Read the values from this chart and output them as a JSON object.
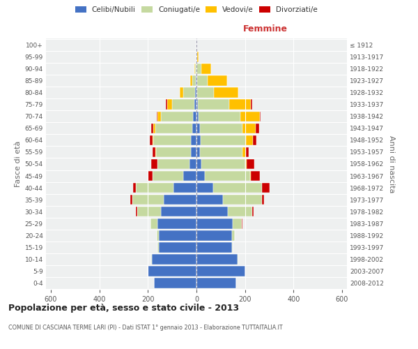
{
  "age_groups": [
    "0-4",
    "5-9",
    "10-14",
    "15-19",
    "20-24",
    "25-29",
    "30-34",
    "35-39",
    "40-44",
    "45-49",
    "50-54",
    "55-59",
    "60-64",
    "65-69",
    "70-74",
    "75-79",
    "80-84",
    "85-89",
    "90-94",
    "95-99",
    "100+"
  ],
  "birth_years": [
    "2008-2012",
    "2003-2007",
    "1998-2002",
    "1993-1997",
    "1988-1992",
    "1983-1987",
    "1978-1982",
    "1973-1977",
    "1968-1972",
    "1963-1967",
    "1958-1962",
    "1953-1957",
    "1948-1952",
    "1943-1947",
    "1938-1942",
    "1933-1937",
    "1928-1932",
    "1923-1927",
    "1918-1922",
    "1913-1917",
    "≤ 1912"
  ],
  "males": {
    "celibi": [
      175,
      200,
      185,
      155,
      155,
      160,
      145,
      135,
      95,
      55,
      30,
      22,
      22,
      18,
      15,
      10,
      5,
      2,
      0,
      0,
      0
    ],
    "coniugati": [
      0,
      0,
      2,
      5,
      10,
      30,
      100,
      130,
      155,
      125,
      130,
      145,
      155,
      150,
      130,
      90,
      50,
      15,
      5,
      0,
      0
    ],
    "vedovi": [
      0,
      0,
      0,
      0,
      0,
      0,
      0,
      0,
      0,
      0,
      2,
      3,
      5,
      10,
      15,
      20,
      15,
      10,
      5,
      0,
      0
    ],
    "divorziati": [
      0,
      0,
      0,
      0,
      0,
      0,
      5,
      8,
      12,
      20,
      25,
      12,
      10,
      10,
      5,
      5,
      0,
      0,
      0,
      0,
      0
    ]
  },
  "females": {
    "nubili": [
      165,
      200,
      170,
      145,
      145,
      148,
      130,
      110,
      70,
      35,
      20,
      15,
      18,
      15,
      10,
      5,
      3,
      2,
      0,
      0,
      0
    ],
    "coniugate": [
      0,
      0,
      3,
      5,
      12,
      40,
      100,
      160,
      200,
      185,
      180,
      175,
      185,
      175,
      170,
      130,
      70,
      45,
      20,
      2,
      0
    ],
    "vedove": [
      0,
      0,
      0,
      0,
      0,
      0,
      0,
      0,
      0,
      5,
      8,
      15,
      30,
      55,
      80,
      90,
      100,
      80,
      40,
      8,
      2
    ],
    "divorziate": [
      0,
      0,
      0,
      0,
      0,
      2,
      5,
      8,
      30,
      35,
      30,
      10,
      15,
      12,
      5,
      5,
      0,
      0,
      0,
      0,
      0
    ]
  },
  "colors": {
    "celibi_nubili": "#4472c4",
    "coniugati": "#c5d9a0",
    "vedovi": "#ffc000",
    "divorziati": "#cc0000"
  },
  "title": "Popolazione per età, sesso e stato civile - 2013",
  "subtitle": "COMUNE DI CASCIANA TERME LARI (PI) - Dati ISTAT 1° gennaio 2013 - Elaborazione TUTTAITALIA.IT",
  "xlabel_right": "Femmine",
  "ylabel_left": "Fasce di età",
  "ylabel_right": "Anni di nascita",
  "xlim": 620,
  "bg_color": "#eef0f0",
  "grid_color": "#cccccc"
}
